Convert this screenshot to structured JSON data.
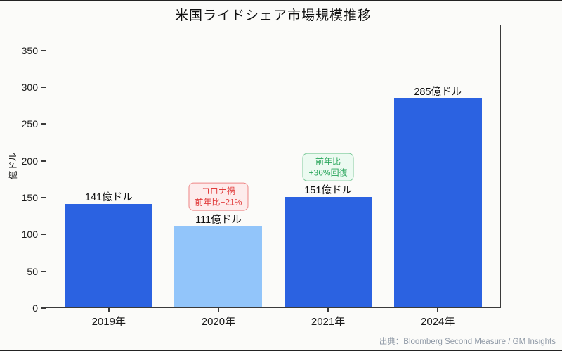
{
  "chart_data": {
    "type": "bar",
    "title": "米国ライドシェア市場規模推移",
    "ylabel": "億ドル",
    "xlabel": "",
    "categories": [
      "2019年",
      "2020年",
      "2021年",
      "2024年"
    ],
    "values": [
      141,
      111,
      151,
      285
    ],
    "bar_labels": [
      "141億ドル",
      "111億ドル",
      "151億ドル",
      "285億ドル"
    ],
    "bar_colors": [
      "#2b62e1",
      "#92c5fa",
      "#2b62e1",
      "#2b62e1"
    ],
    "ylim": [
      0,
      385
    ],
    "yticks": [
      0,
      50,
      100,
      150,
      200,
      250,
      300,
      350
    ],
    "grid": false,
    "legend": "none",
    "annotations": [
      {
        "target": "2020年",
        "lines": [
          "コロナ禍",
          "前年比−21%"
        ],
        "text_color": "#e13c3c",
        "border_color": "#ee8585",
        "fill": "#fdecec"
      },
      {
        "target": "2021年",
        "lines": [
          "前年比",
          "+36%回復"
        ],
        "text_color": "#2aa65c",
        "border_color": "#7bc999",
        "fill": "#ecfaf1"
      }
    ],
    "source": "出典：Bloomberg Second Measure / GM Insights"
  }
}
